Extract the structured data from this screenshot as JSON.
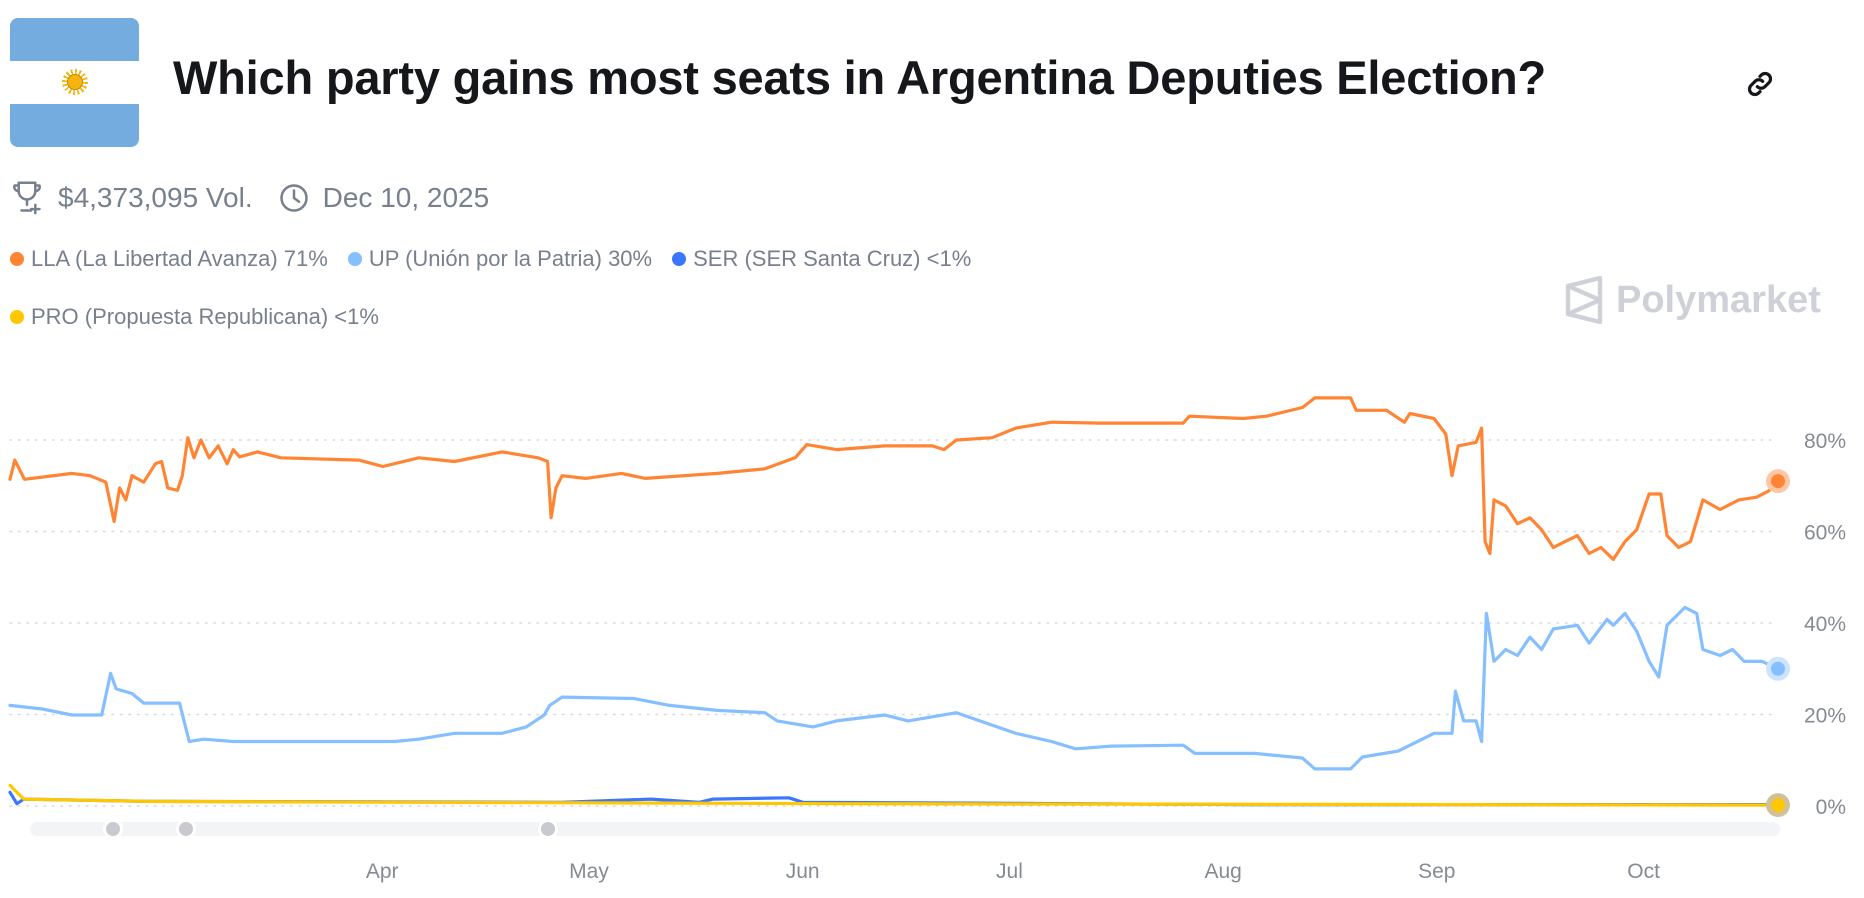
{
  "header": {
    "title": "Which party gains most seats in Argentina Deputies Election?",
    "flag_icon": "argentina-flag",
    "share_icon": "link-icon"
  },
  "meta": {
    "volume": "$4,373,095 Vol.",
    "end_date": "Dec 10, 2025"
  },
  "legend": [
    {
      "label": "LLA (La Libertad Avanza) 71%",
      "color": "#ff8534"
    },
    {
      "label": "UP (Unión por la Patria) 30%",
      "color": "#86bfff"
    },
    {
      "label": "SER (SER Santa Cruz) <1%",
      "color": "#3b76ff"
    },
    {
      "label": "PRO (Propuesta Republicana) <1%",
      "color": "#ffc700"
    }
  ],
  "branding": {
    "logo_text": "Polymarket"
  },
  "chart_data": {
    "type": "line",
    "x_unit": "days since 2025-02-06",
    "x_range": [
      0,
      256.5
    ],
    "ylim": [
      0,
      100
    ],
    "y_ticks": [
      0,
      20,
      40,
      60,
      80
    ],
    "y_tick_labels": [
      "0%",
      "20%",
      "40%",
      "60%",
      "80%"
    ],
    "x_ticks": [
      {
        "day": 54,
        "label": "Apr"
      },
      {
        "day": 84,
        "label": "May"
      },
      {
        "day": 115,
        "label": "Jun"
      },
      {
        "day": 145,
        "label": "Jul"
      },
      {
        "day": 176,
        "label": "Aug"
      },
      {
        "day": 207,
        "label": "Sep"
      },
      {
        "day": 237,
        "label": "Oct"
      }
    ],
    "grid": true,
    "series": [
      {
        "name": "LLA (La Libertad Avanza)",
        "color": "#ff8534",
        "points": [
          [
            0,
            71.4
          ],
          [
            0.7,
            75.6
          ],
          [
            2.1,
            71.4
          ],
          [
            9,
            72.7
          ],
          [
            11.6,
            72.2
          ],
          [
            13.9,
            70.8
          ],
          [
            15.1,
            62.2
          ],
          [
            15.9,
            69.5
          ],
          [
            16.8,
            66.9
          ],
          [
            17.7,
            72.2
          ],
          [
            19.4,
            70.8
          ],
          [
            21.1,
            74.8
          ],
          [
            22,
            75.3
          ],
          [
            22.9,
            69.5
          ],
          [
            24.3,
            69
          ],
          [
            25,
            72.2
          ],
          [
            25.8,
            80.5
          ],
          [
            26.7,
            76.1
          ],
          [
            27.7,
            80
          ],
          [
            28.9,
            76.1
          ],
          [
            30.2,
            78.7
          ],
          [
            31.5,
            74.8
          ],
          [
            32.4,
            77.9
          ],
          [
            33.3,
            76.3
          ],
          [
            35.9,
            77.4
          ],
          [
            39.3,
            76.1
          ],
          [
            50.6,
            75.6
          ],
          [
            54.1,
            74.2
          ],
          [
            59.3,
            76.1
          ],
          [
            64.5,
            75.3
          ],
          [
            71.4,
            77.4
          ],
          [
            76.6,
            76.1
          ],
          [
            78,
            75.3
          ],
          [
            78.5,
            63
          ],
          [
            79.2,
            69.5
          ],
          [
            80.1,
            72.2
          ],
          [
            83.5,
            71.6
          ],
          [
            88.7,
            72.7
          ],
          [
            92.2,
            71.6
          ],
          [
            102.6,
            72.7
          ],
          [
            109.5,
            73.7
          ],
          [
            113.9,
            76.1
          ],
          [
            115.6,
            79
          ],
          [
            119.9,
            77.9
          ],
          [
            126.9,
            78.7
          ],
          [
            133.8,
            78.7
          ],
          [
            135.5,
            77.9
          ],
          [
            137.3,
            80
          ],
          [
            142.5,
            80.5
          ],
          [
            145.9,
            82.6
          ],
          [
            151.1,
            83.9
          ],
          [
            158.1,
            83.7
          ],
          [
            170.2,
            83.7
          ],
          [
            171.1,
            85.2
          ],
          [
            178.9,
            84.7
          ],
          [
            182.3,
            85.2
          ],
          [
            187.5,
            87.1
          ],
          [
            189.3,
            89.2
          ],
          [
            194.5,
            89.2
          ],
          [
            195.3,
            86.5
          ],
          [
            199.7,
            86.5
          ],
          [
            202.3,
            83.9
          ],
          [
            203.1,
            85.8
          ],
          [
            206.6,
            84.7
          ],
          [
            208.3,
            81.3
          ],
          [
            209.2,
            72.2
          ],
          [
            210.1,
            78.7
          ],
          [
            212.7,
            79.5
          ],
          [
            213.5,
            82.6
          ],
          [
            214,
            57.8
          ],
          [
            214.7,
            55.2
          ],
          [
            215.3,
            66.9
          ],
          [
            217,
            65.6
          ],
          [
            218.7,
            61.7
          ],
          [
            220.5,
            63
          ],
          [
            222.2,
            60.4
          ],
          [
            223.9,
            56.5
          ],
          [
            225.6,
            57.8
          ],
          [
            227.4,
            59.1
          ],
          [
            229.1,
            55.2
          ],
          [
            230.8,
            56.5
          ],
          [
            232.6,
            53.9
          ],
          [
            234.3,
            57.8
          ],
          [
            236,
            60.4
          ],
          [
            237.8,
            68.2
          ],
          [
            239.5,
            68.2
          ],
          [
            240.4,
            59.1
          ],
          [
            242.1,
            56.5
          ],
          [
            243.8,
            57.8
          ],
          [
            245.6,
            66.9
          ],
          [
            248.1,
            64.8
          ],
          [
            250.8,
            66.9
          ],
          [
            253.4,
            67.5
          ],
          [
            255.1,
            68.8
          ],
          [
            256.5,
            71
          ]
        ]
      },
      {
        "name": "UP (Unión por la Patria)",
        "color": "#86bfff",
        "points": [
          [
            0,
            22
          ],
          [
            4.7,
            21.2
          ],
          [
            9,
            19.9
          ],
          [
            13.3,
            19.9
          ],
          [
            14.6,
            29
          ],
          [
            15.4,
            25.6
          ],
          [
            17.7,
            24.6
          ],
          [
            19.4,
            22.5
          ],
          [
            24.6,
            22.5
          ],
          [
            26,
            14.1
          ],
          [
            28.1,
            14.6
          ],
          [
            32.4,
            14.1
          ],
          [
            55.8,
            14.1
          ],
          [
            59.3,
            14.6
          ],
          [
            64.5,
            15.9
          ],
          [
            71.4,
            15.9
          ],
          [
            74.9,
            17.3
          ],
          [
            77.5,
            19.9
          ],
          [
            78.3,
            22
          ],
          [
            80.1,
            23.8
          ],
          [
            90.5,
            23.5
          ],
          [
            95.7,
            22
          ],
          [
            102.6,
            20.9
          ],
          [
            109.5,
            20.4
          ],
          [
            111.3,
            18.6
          ],
          [
            116.5,
            17.3
          ],
          [
            119.9,
            18.6
          ],
          [
            126.9,
            19.9
          ],
          [
            130.3,
            18.6
          ],
          [
            137.3,
            20.4
          ],
          [
            140.7,
            18.6
          ],
          [
            145.9,
            15.9
          ],
          [
            151.1,
            14.1
          ],
          [
            154.6,
            12.5
          ],
          [
            159.8,
            13.1
          ],
          [
            170.2,
            13.3
          ],
          [
            171.9,
            11.5
          ],
          [
            180.6,
            11.5
          ],
          [
            187.5,
            10.5
          ],
          [
            189.3,
            8.1
          ],
          [
            194.5,
            8.1
          ],
          [
            196.2,
            10.7
          ],
          [
            201.4,
            12
          ],
          [
            206.6,
            15.9
          ],
          [
            209.2,
            15.9
          ],
          [
            209.7,
            25.1
          ],
          [
            210.9,
            18.6
          ],
          [
            212.7,
            18.6
          ],
          [
            213.5,
            14.1
          ],
          [
            214.2,
            42.1
          ],
          [
            215.3,
            31.6
          ],
          [
            217,
            34.2
          ],
          [
            218.7,
            32.9
          ],
          [
            220.5,
            36.9
          ],
          [
            222.2,
            34.2
          ],
          [
            223.9,
            38.7
          ],
          [
            227.4,
            39.5
          ],
          [
            229.1,
            35.6
          ],
          [
            231.7,
            40.8
          ],
          [
            232.6,
            39.5
          ],
          [
            234.3,
            42.1
          ],
          [
            236,
            38.2
          ],
          [
            237.8,
            31.6
          ],
          [
            239.2,
            28.2
          ],
          [
            240.4,
            39.5
          ],
          [
            243,
            43.4
          ],
          [
            244.7,
            42.1
          ],
          [
            245.6,
            34.2
          ],
          [
            248.1,
            32.9
          ],
          [
            249.9,
            34.2
          ],
          [
            251.6,
            31.6
          ],
          [
            254.2,
            31.6
          ],
          [
            256.5,
            30
          ]
        ]
      },
      {
        "name": "SER (SER Santa Cruz)",
        "color": "#3b76ff",
        "points": [
          [
            0,
            3
          ],
          [
            1,
            0.5
          ],
          [
            2,
            1.5
          ],
          [
            20,
            1
          ],
          [
            80,
            0.8
          ],
          [
            93,
            1.5
          ],
          [
            100,
            0.8
          ],
          [
            102,
            1.5
          ],
          [
            113,
            1.8
          ],
          [
            115,
            0.8
          ],
          [
            180,
            0.3
          ],
          [
            256.5,
            0.3
          ]
        ]
      },
      {
        "name": "PRO (Propuesta Republicana)",
        "color": "#ffc700",
        "points": [
          [
            0,
            4.5
          ],
          [
            2,
            1.5
          ],
          [
            20,
            1
          ],
          [
            60,
            0.8
          ],
          [
            120,
            0.5
          ],
          [
            256.5,
            0.2
          ]
        ]
      }
    ]
  }
}
